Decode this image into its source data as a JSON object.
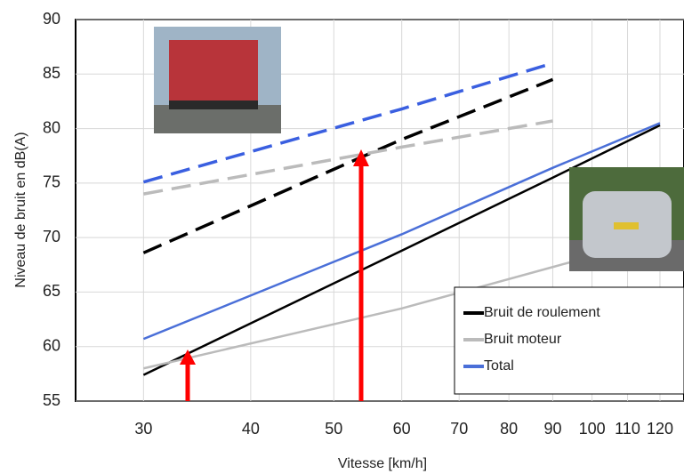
{
  "chart_data": {
    "type": "line",
    "y_label": "Niveau de bruit en dB(A)",
    "x_label": "Vitesse  [km/h]",
    "xscale": "log",
    "xlim": [
      25,
      128
    ],
    "xticks": [
      30,
      40,
      50,
      60,
      70,
      80,
      90,
      100,
      110,
      120
    ],
    "ylim": [
      55,
      90
    ],
    "yticks": [
      55,
      60,
      65,
      70,
      75,
      80,
      85,
      90
    ],
    "grid": true,
    "legend": "lower right",
    "series": [
      {
        "name": "Bruit de roulement",
        "color": "#000000",
        "x": [
          30,
          60,
          90,
          120
        ],
        "values": [
          57.4,
          68.8,
          75.5,
          80.3
        ]
      },
      {
        "name": "Bruit moteur",
        "color": "#bbbbbb",
        "x": [
          30,
          60,
          90,
          120
        ],
        "values": [
          58.0,
          63.5,
          67.3,
          70.0
        ]
      },
      {
        "name": "Total",
        "color": "#4a6fd8",
        "x": [
          30,
          60,
          90,
          120
        ],
        "values": [
          60.7,
          70.3,
          76.4,
          80.5
        ]
      },
      {
        "name": "Bruit de roulement",
        "color": "#000000",
        "dashed": true,
        "legend": false,
        "x": [
          30,
          60,
          90
        ],
        "values": [
          68.6,
          79.0,
          84.5
        ]
      },
      {
        "name": "Bruit moteur",
        "color": "#bbbbbb",
        "dashed": true,
        "legend": false,
        "x": [
          30,
          60,
          90
        ],
        "values": [
          74.0,
          78.3,
          80.7
        ]
      },
      {
        "name": "Total",
        "color": "#3a5fe0",
        "dashed": true,
        "legend": false,
        "x": [
          30,
          60,
          90
        ],
        "values": [
          75.1,
          81.8,
          86.0
        ]
      }
    ]
  }
}
